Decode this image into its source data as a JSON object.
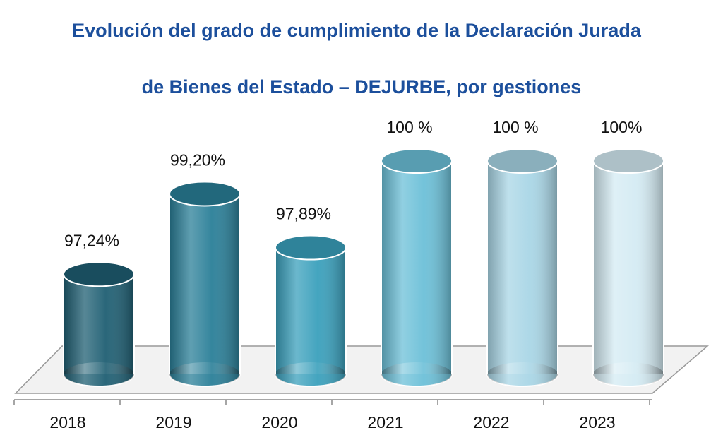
{
  "chart_data": {
    "type": "cylinder",
    "title": [
      "Evolución del grado de cumplimiento de la Declaración Jurada",
      "de Bienes del Estado – DEJURBE, por gestiones"
    ],
    "categories": [
      "2018",
      "2019",
      "2020",
      "2021",
      "2022",
      "2023"
    ],
    "values": [
      97.24,
      99.2,
      97.89,
      100,
      100,
      100
    ],
    "value_labels": [
      "97,24%",
      "99,20%",
      "97,89%",
      "100 %",
      "100 %",
      "100%"
    ],
    "colors": [
      "#1f5f73",
      "#2a7f98",
      "#3aa0bc",
      "#6cc0d8",
      "#a9d6e6",
      "#d4ebf3"
    ],
    "ylim": [
      94.8,
      100
    ]
  }
}
